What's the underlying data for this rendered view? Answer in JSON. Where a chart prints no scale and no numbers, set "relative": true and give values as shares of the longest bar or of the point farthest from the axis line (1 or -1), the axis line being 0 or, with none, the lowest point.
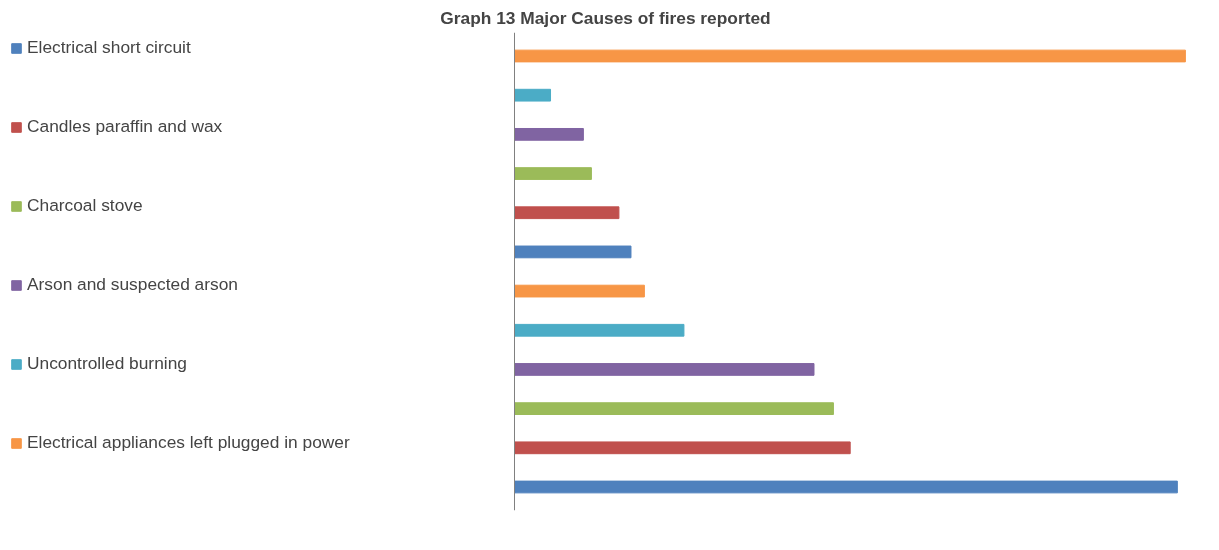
{
  "chart_data": {
    "type": "bar",
    "orientation": "horizontal",
    "stacked": true,
    "relative": true,
    "title": "Graph 13 Major Causes of fires reported",
    "categories": [
      null,
      null,
      null,
      null,
      null,
      null,
      null,
      null,
      null,
      null,
      null,
      null
    ],
    "series": [
      {
        "name": "Electrical short circuit",
        "color": "#4f81bd",
        "values": [
          null,
          null,
          null,
          null,
          null,
          0.173,
          null,
          null,
          null,
          null,
          null,
          0.988
        ]
      },
      {
        "name": "Candles paraffin and wax",
        "color": "#c0504d",
        "values": [
          null,
          null,
          null,
          null,
          0.155,
          null,
          null,
          null,
          null,
          null,
          0.5,
          null
        ]
      },
      {
        "name": "Charcoal stove",
        "color": "#9bbb59",
        "values": [
          null,
          null,
          null,
          0.114,
          null,
          null,
          null,
          null,
          null,
          0.475,
          null,
          null
        ]
      },
      {
        "name": "Arson and suspected arson",
        "color": "#8064a2",
        "values": [
          null,
          null,
          0.102,
          null,
          null,
          null,
          null,
          null,
          0.446,
          null,
          null,
          null
        ]
      },
      {
        "name": "Uncontrolled burning",
        "color": "#4bacc6",
        "values": [
          null,
          0.053,
          null,
          null,
          null,
          null,
          null,
          0.252,
          null,
          null,
          null,
          null
        ]
      },
      {
        "name": "Electrical appliances left plugged in power",
        "color": "#f79646",
        "values": [
          1.0,
          null,
          null,
          null,
          null,
          null,
          0.193,
          null,
          null,
          null,
          null,
          null
        ]
      }
    ],
    "legend": "left",
    "grid": false
  }
}
